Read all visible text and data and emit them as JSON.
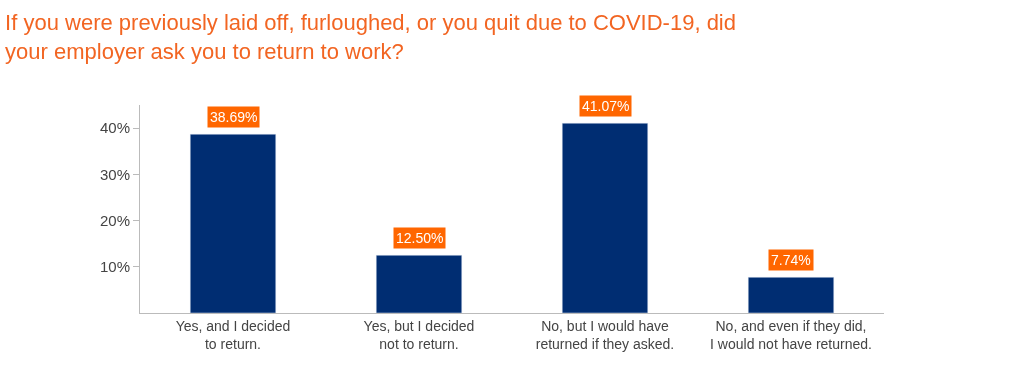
{
  "chart_data": {
    "type": "bar",
    "title": "If you were previously laid off, furloughed, or you quit due to COVID-19, did\nyour employer ask you to return to work?",
    "categories": [
      "Yes, and I decided\nto return.",
      "Yes, but I decided\nnot to return.",
      "No, but I would have\nreturned if they asked.",
      "No, and even if they did,\nI would not have returned."
    ],
    "values": [
      38.69,
      12.5,
      41.07,
      7.74
    ],
    "value_labels": [
      "38.69%",
      "12.50%",
      "41.07%",
      "7.74%"
    ],
    "color": "#002d72",
    "ylim": [
      0,
      45
    ],
    "yticks": [
      {
        "value": 10,
        "label": "10%"
      },
      {
        "value": 20,
        "label": "20%"
      },
      {
        "value": 30,
        "label": "30%"
      },
      {
        "value": 40,
        "label": "40%"
      }
    ]
  }
}
